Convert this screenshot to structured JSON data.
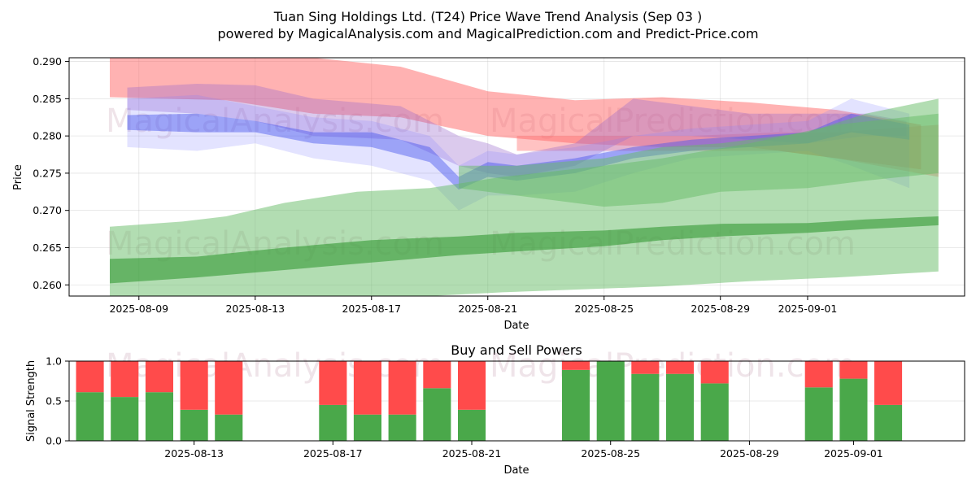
{
  "chart_data": [
    {
      "type": "area",
      "title": "Tuan Sing Holdings Ltd. (T24) Price Wave Trend Analysis (Sep 03 )",
      "subtitle": "powered by MagicalAnalysis.com and MagicalPrediction.com and Predict-Price.com",
      "xlabel": "Date",
      "ylabel": "Price",
      "xlim": [
        -2.4,
        28.4
      ],
      "ylim": [
        0.2585,
        0.2905
      ],
      "x_ticks": [
        {
          "label": "2025-08-09",
          "x": 0
        },
        {
          "label": "2025-08-13",
          "x": 4
        },
        {
          "label": "2025-08-17",
          "x": 8
        },
        {
          "label": "2025-08-21",
          "x": 12
        },
        {
          "label": "2025-08-25",
          "x": 16
        },
        {
          "label": "2025-08-29",
          "x": 20
        },
        {
          "label": "2025-09-01",
          "x": 23
        }
      ],
      "y_ticks": [
        "0.260",
        "0.265",
        "0.270",
        "0.275",
        "0.280",
        "0.285",
        "0.290"
      ],
      "watermarks": [
        "MagicalAnalysis.com",
        "MagicalPrediction.com",
        "MagicalAnalysis.com",
        "MagicalPrediction.com"
      ],
      "bands": [
        {
          "name": "red wave (upper)",
          "color": "#ff6666",
          "opacity": 0.5,
          "x": [
            -1,
            3,
            6,
            9,
            12,
            15,
            18,
            21,
            24,
            26.9
          ],
          "upper": [
            0.2905,
            0.2905,
            0.2905,
            0.2893,
            0.286,
            0.2848,
            0.2852,
            0.2845,
            0.2835,
            0.2815
          ],
          "lower": [
            0.2852,
            0.2848,
            0.283,
            0.2825,
            0.28,
            0.279,
            0.2785,
            0.2785,
            0.277,
            0.2755
          ]
        },
        {
          "name": "red wave (lower)",
          "color": "#ff6666",
          "opacity": 0.4,
          "x": [
            13,
            16,
            19,
            22,
            24,
            27.5
          ],
          "upper": [
            0.28,
            0.28,
            0.28,
            0.2805,
            0.2805,
            0.2815
          ],
          "lower": [
            0.278,
            0.278,
            0.278,
            0.278,
            0.277,
            0.2745
          ]
        },
        {
          "name": "purple wave",
          "color": "#9966cc",
          "opacity": 0.35,
          "x": [
            -0.4,
            2,
            4,
            6,
            9,
            11,
            12,
            13,
            15,
            17,
            19,
            21,
            23,
            25,
            26.4
          ],
          "upper": [
            0.2865,
            0.287,
            0.2868,
            0.285,
            0.284,
            0.28,
            0.279,
            0.2775,
            0.279,
            0.285,
            0.284,
            0.283,
            0.283,
            0.283,
            0.282
          ],
          "lower": [
            0.2835,
            0.283,
            0.282,
            0.28,
            0.2795,
            0.276,
            0.275,
            0.2745,
            0.276,
            0.28,
            0.28,
            0.2795,
            0.279,
            0.28,
            0.28
          ]
        },
        {
          "name": "blue wave (outer)",
          "color": "#8080ff",
          "opacity": 0.22,
          "x": [
            -0.4,
            2,
            4,
            6,
            8,
            10,
            11,
            12,
            13,
            15,
            17,
            19,
            21,
            23,
            24.5,
            26.5
          ],
          "upper": [
            0.285,
            0.2855,
            0.284,
            0.2825,
            0.282,
            0.28,
            0.276,
            0.278,
            0.2775,
            0.2785,
            0.28,
            0.281,
            0.2815,
            0.282,
            0.285,
            0.283
          ],
          "lower": [
            0.2785,
            0.278,
            0.279,
            0.277,
            0.276,
            0.274,
            0.27,
            0.272,
            0.272,
            0.2725,
            0.275,
            0.277,
            0.2775,
            0.278,
            0.276,
            0.273
          ]
        },
        {
          "name": "blue wave (core)",
          "color": "#4455ee",
          "opacity": 0.45,
          "x": [
            -0.4,
            2,
            4,
            6,
            8,
            10,
            11,
            12,
            13,
            15,
            17,
            19,
            21,
            23,
            24.5,
            26.5
          ],
          "upper": [
            0.2828,
            0.283,
            0.282,
            0.2805,
            0.2805,
            0.2785,
            0.2745,
            0.2765,
            0.276,
            0.277,
            0.2785,
            0.2795,
            0.28,
            0.2805,
            0.283,
            0.2815
          ],
          "lower": [
            0.2808,
            0.2805,
            0.2805,
            0.279,
            0.2785,
            0.2765,
            0.2728,
            0.2745,
            0.274,
            0.275,
            0.277,
            0.278,
            0.2785,
            0.279,
            0.2805,
            0.2795
          ]
        },
        {
          "name": "green wave (wide)",
          "color": "#66bb66",
          "opacity": 0.5,
          "x": [
            -1,
            1.5,
            3,
            5,
            7.5,
            10,
            12.5,
            16,
            18,
            21,
            24,
            27.5
          ],
          "upper": [
            0.2678,
            0.2685,
            0.2692,
            0.271,
            0.2725,
            0.273,
            0.2745,
            0.276,
            0.277,
            0.279,
            0.2815,
            0.283
          ],
          "lower": [
            0.2585,
            0.2585,
            0.2585,
            0.2585,
            0.2585,
            0.2585,
            0.259,
            0.2595,
            0.2598,
            0.2605,
            0.261,
            0.2618
          ]
        },
        {
          "name": "green wave (upper)",
          "color": "#66bb66",
          "opacity": 0.5,
          "x": [
            11,
            13,
            16,
            18,
            20,
            23,
            25,
            27.5
          ],
          "upper": [
            0.276,
            0.276,
            0.277,
            0.2785,
            0.279,
            0.2805,
            0.283,
            0.285
          ],
          "lower": [
            0.273,
            0.272,
            0.2705,
            0.271,
            0.2725,
            0.273,
            0.274,
            0.275
          ]
        },
        {
          "name": "green wave (dark)",
          "color": "#339933",
          "opacity": 0.6,
          "x": [
            -1,
            2,
            5,
            8,
            11,
            13,
            16,
            18,
            20,
            23,
            25,
            27.5
          ],
          "upper": [
            0.2635,
            0.2638,
            0.265,
            0.266,
            0.2665,
            0.267,
            0.2673,
            0.2678,
            0.2682,
            0.2683,
            0.2688,
            0.2692
          ],
          "lower": [
            0.2602,
            0.261,
            0.262,
            0.263,
            0.264,
            0.2645,
            0.2652,
            0.266,
            0.2665,
            0.267,
            0.2675,
            0.268
          ]
        }
      ]
    },
    {
      "type": "bar",
      "stacked": true,
      "title": "Buy and Sell Powers",
      "xlabel": "Date",
      "ylabel": "Signal Strength",
      "ylim": [
        0,
        1
      ],
      "y_ticks": [
        "0.0",
        "0.5",
        "1.0"
      ],
      "xlim": [
        -0.6,
        25.2
      ],
      "x_ticks": [
        {
          "label": "2025-08-13",
          "x": 3
        },
        {
          "label": "2025-08-17",
          "x": 7
        },
        {
          "label": "2025-08-21",
          "x": 11
        },
        {
          "label": "2025-08-25",
          "x": 15
        },
        {
          "label": "2025-08-29",
          "x": 19
        },
        {
          "label": "2025-09-01",
          "x": 22
        }
      ],
      "categories": [
        "2025-08-10",
        "2025-08-11",
        "2025-08-12",
        "2025-08-13",
        "2025-08-14",
        "2025-08-17",
        "2025-08-18",
        "2025-08-19",
        "2025-08-20",
        "2025-08-21",
        "2025-08-24",
        "2025-08-25",
        "2025-08-26",
        "2025-08-27",
        "2025-08-28",
        "2025-08-31",
        "2025-09-01",
        "2025-09-02"
      ],
      "x": [
        0,
        1,
        2,
        3,
        4,
        7,
        8,
        9,
        10,
        11,
        14,
        15,
        16,
        17,
        18,
        21,
        22,
        23
      ],
      "series": [
        {
          "name": "Buy",
          "color": "#4aa84a",
          "values": [
            0.61,
            0.55,
            0.61,
            0.39,
            0.33,
            0.45,
            0.33,
            0.33,
            0.66,
            0.39,
            0.89,
            1.0,
            0.84,
            0.84,
            0.72,
            0.67,
            0.78,
            0.45
          ]
        },
        {
          "name": "Sell",
          "color": "#ff4b4b",
          "values": [
            0.39,
            0.45,
            0.39,
            0.61,
            0.67,
            0.55,
            0.67,
            0.67,
            0.34,
            0.61,
            0.11,
            0.0,
            0.16,
            0.16,
            0.28,
            0.33,
            0.22,
            0.55
          ]
        }
      ],
      "watermarks": [
        "MagicalAnalysis.com",
        "MagicalPrediction.com"
      ]
    }
  ]
}
